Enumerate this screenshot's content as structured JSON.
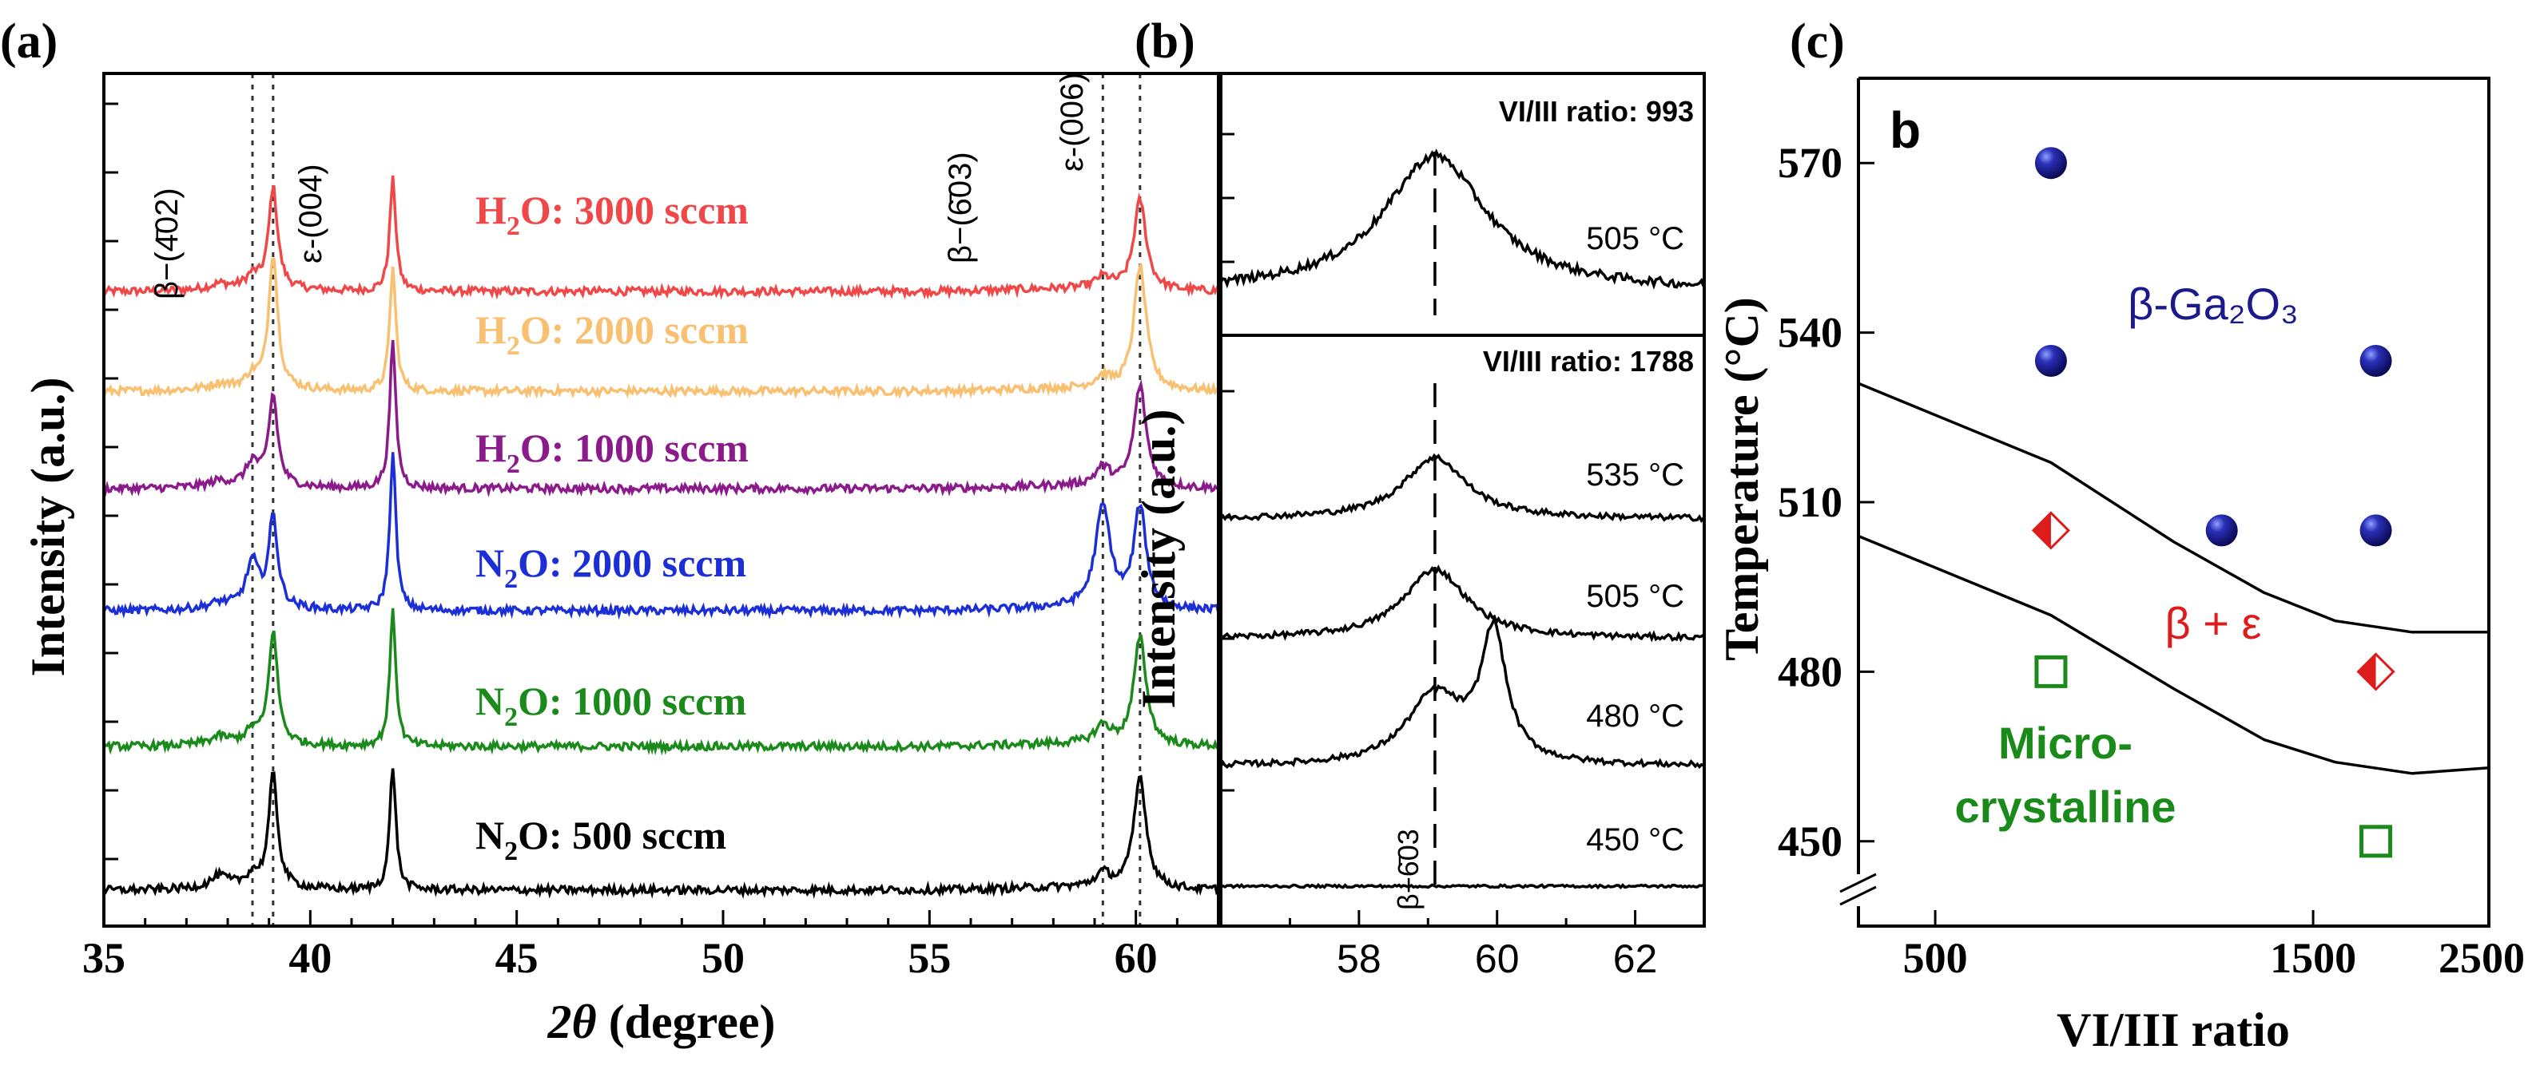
{
  "panels": {
    "a": {
      "label": "(a)",
      "ylabel": "Intensity (a.u.)",
      "xlabel_theta": "2θ",
      "xlabel_rest": " (degree)",
      "peak_labels": [
        {
          "text": "β−(4̄02)"
        },
        {
          "text": "ε-(004)"
        },
        {
          "text": "β−(6̄03)"
        },
        {
          "text": "ε-(006)"
        }
      ]
    },
    "b": {
      "label": "(b)",
      "ylabel": "Intensity (a.u.)",
      "ratio_top": "VI/III ratio: 993",
      "ratio_bottom": "VI/III ratio: 1788",
      "peak_label": "β−6̄03"
    },
    "c": {
      "label": "(c)",
      "corner": "b",
      "ylabel": "Temperature (°C)",
      "xlabel": "VI/III ratio",
      "region_beta": "β-Ga₂O₃",
      "region_mix": "β + ε",
      "region_micro_1": "Micro-",
      "region_micro_2": "crystalline"
    }
  },
  "chart_data": [
    {
      "panel": "a",
      "type": "line",
      "xlabel": "2θ (degree)",
      "ylabel": "Intensity (a.u.)",
      "xlim": [
        35,
        62
      ],
      "xticks": [
        35,
        40,
        45,
        50,
        55,
        60
      ],
      "reference_lines": [
        38.6,
        39.1,
        59.2,
        60.1
      ],
      "peaks": [
        37.8,
        38.6,
        39.1,
        42.0,
        59.2,
        60.1
      ],
      "series": [
        {
          "name": "H2O: 3000 sccm",
          "label_main": "H",
          "label_sub": "2",
          "label_rest": "O:  3000 sccm",
          "color": "#f04848",
          "peak_heights": {
            "37.8": 0.02,
            "38.6": 0.05,
            "39.1": 0.45,
            "42.0": 0.5,
            "59.2": 0.05,
            "60.1": 0.4
          }
        },
        {
          "name": "H2O: 2000 sccm",
          "label_main": "H",
          "label_sub": "2",
          "label_rest": "O:  2000 sccm",
          "color": "#f8c070",
          "peak_heights": {
            "37.8": 0.02,
            "38.6": 0.05,
            "39.1": 0.6,
            "42.0": 0.55,
            "59.2": 0.05,
            "60.1": 0.55
          }
        },
        {
          "name": "H2O: 1000 sccm",
          "label_main": "H",
          "label_sub": "2",
          "label_rest": "O:  1000 sccm",
          "color": "#8b1a8b",
          "peak_heights": {
            "37.8": 0.02,
            "38.6": 0.1,
            "39.1": 0.4,
            "42.0": 0.65,
            "59.2": 0.08,
            "60.1": 0.45
          }
        },
        {
          "name": "N2O: 2000 sccm",
          "label_main": "N",
          "label_sub": "2",
          "label_rest": "O:  2000 sccm",
          "color": "#1c2fd6",
          "peak_heights": {
            "37.8": 0.02,
            "38.6": 0.2,
            "39.1": 0.4,
            "42.0": 0.7,
            "59.2": 0.45,
            "60.1": 0.45
          }
        },
        {
          "name": "N2O: 1000 sccm",
          "label_main": "N",
          "label_sub": "2",
          "label_rest": "O:  1000 sccm",
          "color": "#1a8a1a",
          "peak_heights": {
            "37.8": 0.03,
            "38.6": 0.05,
            "39.1": 0.5,
            "42.0": 0.6,
            "59.2": 0.08,
            "60.1": 0.48
          }
        },
        {
          "name": "N2O: 500 sccm",
          "label_main": "N",
          "label_sub": "2",
          "label_rest": "O:   500 sccm",
          "color": "#000000",
          "peak_heights": {
            "37.8": 0.05,
            "38.6": 0.05,
            "39.1": 0.5,
            "42.0": 0.55,
            "59.2": 0.06,
            "60.1": 0.5
          }
        }
      ]
    },
    {
      "panel": "b",
      "type": "line",
      "ylabel": "Intensity (a.u.)",
      "xlim": [
        56,
        63
      ],
      "xticks": [
        58,
        60,
        62
      ],
      "reference_line": 59.1,
      "series": [
        {
          "name": "505 °C",
          "group": "VI/III ratio: 993",
          "peaks": [
            {
              "x": 59.1,
              "h": 1.0,
              "w": 0.9
            }
          ]
        },
        {
          "name": "535 °C",
          "group": "VI/III ratio: 1788",
          "peaks": [
            {
              "x": 59.1,
              "h": 0.55,
              "w": 0.55
            }
          ]
        },
        {
          "name": "505 °C",
          "group": "VI/III ratio: 1788",
          "peaks": [
            {
              "x": 59.1,
              "h": 0.6,
              "w": 0.55
            }
          ]
        },
        {
          "name": "480 °C",
          "group": "VI/III ratio: 1788",
          "peaks": [
            {
              "x": 59.1,
              "h": 0.55,
              "w": 0.5
            },
            {
              "x": 59.95,
              "h": 1.0,
              "w": 0.22
            }
          ]
        },
        {
          "name": "450 °C",
          "group": "VI/III ratio: 1788",
          "peaks": []
        }
      ]
    },
    {
      "panel": "c",
      "type": "scatter",
      "xlabel": "VI/III ratio",
      "ylabel": "Temperature (°C)",
      "xlim": [
        400,
        2500
      ],
      "xticks": [
        500,
        1500,
        2500
      ],
      "ylim": [
        435,
        585
      ],
      "yticks": [
        450,
        480,
        510,
        540,
        570
      ],
      "series": [
        {
          "name": "β-Ga2O3",
          "marker": "sphere",
          "color": "#1a1a8c",
          "points": [
            [
              700,
              570
            ],
            [
              700,
              535
            ],
            [
              1800,
              535
            ],
            [
              1150,
              505
            ],
            [
              1800,
              505
            ]
          ]
        },
        {
          "name": "β + ε",
          "marker": "half-diamond",
          "color": "#dd1c1c",
          "points": [
            [
              700,
              505
            ],
            [
              1800,
              480
            ]
          ]
        },
        {
          "name": "Micro-crystalline",
          "marker": "open-square",
          "color": "#1a8a1a",
          "points": [
            [
              700,
              480
            ],
            [
              1800,
              450
            ]
          ]
        }
      ],
      "boundaries": [
        [
          [
            400,
            531
          ],
          [
            700,
            517
          ],
          [
            1000,
            503
          ],
          [
            1300,
            494
          ],
          [
            1600,
            489
          ],
          [
            2000,
            487
          ],
          [
            2500,
            487
          ]
        ],
        [
          [
            400,
            504
          ],
          [
            700,
            490
          ],
          [
            1000,
            477
          ],
          [
            1300,
            468
          ],
          [
            1600,
            464
          ],
          [
            2000,
            462
          ],
          [
            2500,
            463
          ]
        ]
      ]
    }
  ]
}
